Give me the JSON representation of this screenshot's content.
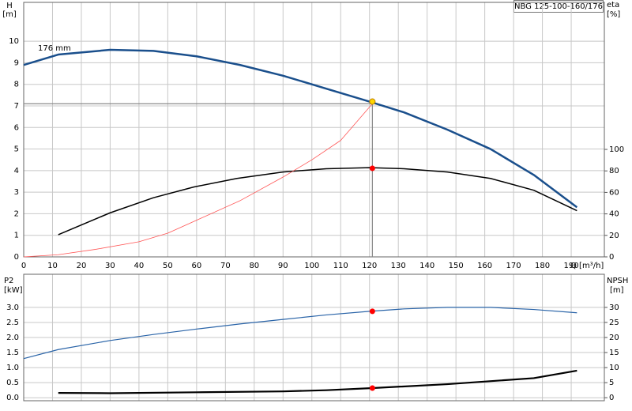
{
  "chart_data": [
    {
      "type": "line",
      "title": "NBG 125-100-160/176",
      "x_label": "Q [m³/h]",
      "y_label": "H",
      "y_unit": "[m]",
      "y2_label": "eta",
      "y2_unit": "[%]",
      "xlim": [
        0,
        201.5
      ],
      "xticks": [
        0,
        10,
        20,
        30,
        40,
        50,
        60,
        70,
        80,
        90,
        100,
        110,
        120,
        130,
        140,
        150,
        160,
        170,
        180,
        190
      ],
      "ylim": [
        0,
        11.8
      ],
      "yticks": [
        0,
        1,
        2,
        3,
        4,
        5,
        6,
        7,
        8,
        9,
        10
      ],
      "y2lim": [
        0,
        236.8
      ],
      "y2ticks": [
        0,
        20,
        40,
        60,
        80,
        100
      ],
      "grid": true,
      "series": [
        {
          "name": "176 mm",
          "color": "#1a4f8c",
          "width": 2.5,
          "x": [
            0,
            12,
            30,
            45,
            60,
            75,
            90,
            105,
            120,
            132,
            147,
            162,
            177,
            192
          ],
          "values": [
            8.9,
            9.38,
            9.6,
            9.55,
            9.3,
            8.9,
            8.4,
            7.8,
            7.2,
            6.7,
            5.9,
            5.0,
            3.8,
            2.3
          ]
        },
        {
          "color": "#000000",
          "width": 1.5,
          "axis": "y2",
          "x": [
            12,
            30,
            45,
            59,
            74,
            90,
            105,
            120,
            132,
            147,
            162,
            177,
            192
          ],
          "values": [
            20.6,
            41,
            55,
            65,
            73,
            79,
            82,
            83,
            82,
            79,
            73,
            62,
            43
          ]
        },
        {
          "color": "#ff5555",
          "width": 0.8,
          "x": [
            0,
            12,
            25,
            40,
            50,
            60,
            75,
            90,
            100,
            110,
            121
          ],
          "values": [
            0,
            0.1,
            0.35,
            0.7,
            1.1,
            1.7,
            2.6,
            3.7,
            4.5,
            5.4,
            7.1
          ]
        }
      ],
      "duty_point": {
        "x": 121,
        "y": 7.1
      },
      "markers": [
        {
          "x": 121,
          "y": 7.2,
          "color": "#ffd700"
        },
        {
          "x": 121,
          "y": 82.4,
          "axis": "y2",
          "color": "#ff0000"
        }
      ]
    },
    {
      "type": "line",
      "y_label": "P2",
      "y_unit": "[kW]",
      "y2_label": "NPSH",
      "y2_unit": "[m]",
      "xlim": [
        0,
        201.5
      ],
      "xticks": [
        0,
        10,
        20,
        30,
        40,
        50,
        60,
        70,
        80,
        90,
        100,
        110,
        120,
        130,
        140,
        150,
        160,
        170,
        180,
        190
      ],
      "ylim": [
        -0.1,
        4.1
      ],
      "yticks": [
        {
          "value": 0,
          "label": "0.0"
        },
        0.5,
        {
          "value": 1,
          "label": "1.0"
        },
        1.5,
        {
          "value": 2,
          "label": "2.0"
        },
        2.5,
        {
          "value": 3,
          "label": "3.0"
        }
      ],
      "y2lim": [
        -1,
        41
      ],
      "y2ticks": [
        0,
        5,
        10,
        15,
        20,
        25,
        30
      ],
      "grid": true,
      "series": [
        {
          "color": "#2a64a8",
          "width": 1.2,
          "x": [
            0,
            12,
            30,
            45,
            60,
            75,
            90,
            105,
            120,
            132,
            147,
            162,
            177,
            192
          ],
          "values": [
            1.3,
            1.6,
            1.9,
            2.1,
            2.28,
            2.45,
            2.6,
            2.75,
            2.87,
            2.95,
            3.0,
            3.0,
            2.93,
            2.82
          ]
        },
        {
          "color": "#000000",
          "width": 2.2,
          "axis": "y2",
          "x": [
            12,
            30,
            60,
            90,
            105,
            121,
            147,
            177,
            192
          ],
          "values": [
            1.6,
            1.5,
            1.8,
            2.1,
            2.5,
            3.2,
            4.5,
            6.5,
            9.0
          ]
        }
      ],
      "markers": [
        {
          "x": 121,
          "y": 2.87,
          "color": "#ff0000"
        },
        {
          "x": 121,
          "y": 3.2,
          "axis": "y2",
          "color": "#ff0000"
        }
      ]
    }
  ]
}
